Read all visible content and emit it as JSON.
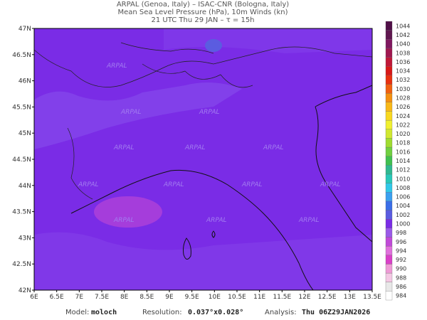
{
  "header": {
    "lines": [
      "ARPAL (Genoa, Italy)  –  ISAC-CNR (Bologna, Italy)",
      "Mean Sea Level Pressure (hPa), 10m Winds (kn)",
      "21 UTC Thu 29 JAN  –  τ = 15h"
    ]
  },
  "map": {
    "lat_labels": [
      "47N",
      "46.5N",
      "46N",
      "45.5N",
      "45N",
      "44.5N",
      "44N",
      "43.5N",
      "43N",
      "42.5N",
      "42N"
    ],
    "lon_labels": [
      "6E",
      "6.5E",
      "7E",
      "7.5E",
      "8E",
      "8.5E",
      "9E",
      "9.5E",
      "10E",
      "10.5E",
      "11E",
      "11.5E",
      "12E",
      "12.5E",
      "13E",
      "13.5E"
    ],
    "watermark": "ARPAL"
  },
  "colorbar": {
    "labels": [
      984,
      986,
      988,
      990,
      992,
      994,
      996,
      998,
      1000,
      1002,
      1004,
      1006,
      1008,
      1010,
      1012,
      1014,
      1016,
      1018,
      1020,
      1022,
      1024,
      1026,
      1028,
      1030,
      1032,
      1034,
      1036,
      1038,
      1040,
      1042,
      1044
    ]
  },
  "footer": {
    "model_label": "Model:",
    "model": "moloch",
    "resolution_label": "Resolution:",
    "resolution": "0.037°x0.028°",
    "analysis_label": "Analysis:",
    "analysis": "Thu 06Z29JAN2026"
  }
}
